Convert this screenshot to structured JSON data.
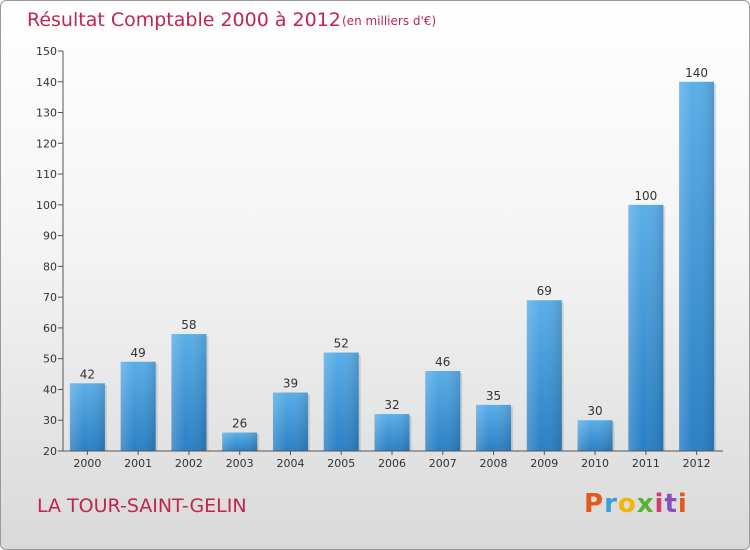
{
  "chart_data": {
    "type": "bar",
    "title": "Résultat Comptable 2000 à 2012",
    "unit_label": "(en milliers d'€)",
    "categories": [
      "2000",
      "2001",
      "2002",
      "2003",
      "2004",
      "2005",
      "2006",
      "2007",
      "2008",
      "2009",
      "2010",
      "2011",
      "2012"
    ],
    "values": [
      42,
      49,
      58,
      26,
      39,
      52,
      32,
      46,
      35,
      69,
      30,
      100,
      140
    ],
    "ylim": [
      20,
      150
    ],
    "yticks": [
      20,
      30,
      40,
      50,
      60,
      70,
      80,
      90,
      100,
      110,
      120,
      130,
      140,
      150
    ],
    "grid": false,
    "bar_color": "#4a9fdf"
  },
  "place_name": "LA TOUR-SAINT-GELIN",
  "logo": {
    "text": "Proxiti",
    "colors": [
      "#e05a1c",
      "#3aa0d8",
      "#f2b705",
      "#5ab031",
      "#d23c6e",
      "#8a4fbf",
      "#e05a1c"
    ]
  }
}
